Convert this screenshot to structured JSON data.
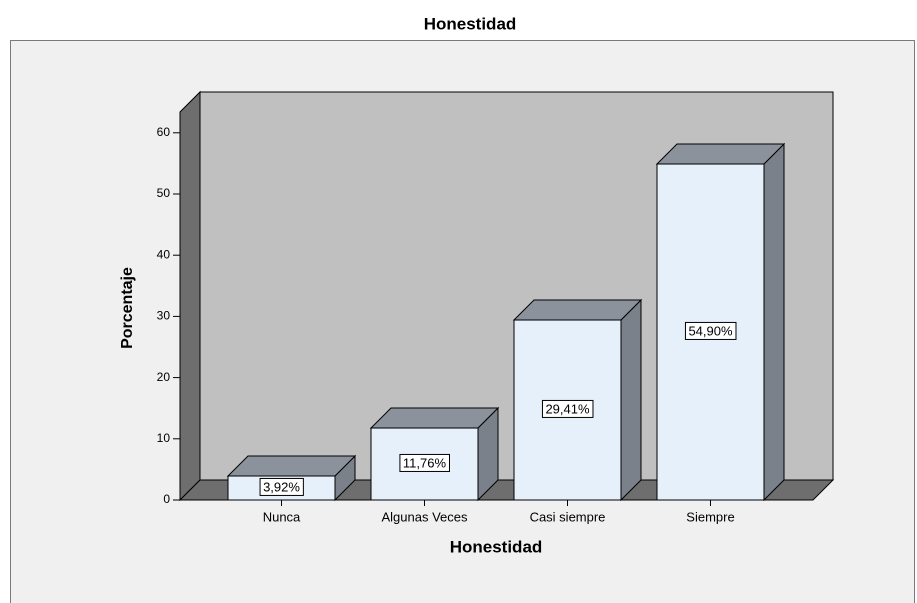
{
  "chart_data": {
    "type": "bar3d",
    "title": "Honestidad",
    "x_label": "Honestidad",
    "y_label": "Porcentaje",
    "categories": [
      "Nunca",
      "Algunas Veces",
      "Casi siempre",
      "Siempre"
    ],
    "values": [
      3.92,
      11.76,
      29.41,
      54.9
    ],
    "value_labels": [
      "3,92%",
      "11,76%",
      "29,41%",
      "54,90%"
    ],
    "color": "#e6f0fa",
    "ylim": [
      0,
      63.4
    ],
    "yticks": [
      0,
      10,
      20,
      30,
      40,
      50,
      60
    ],
    "grid": false
  }
}
